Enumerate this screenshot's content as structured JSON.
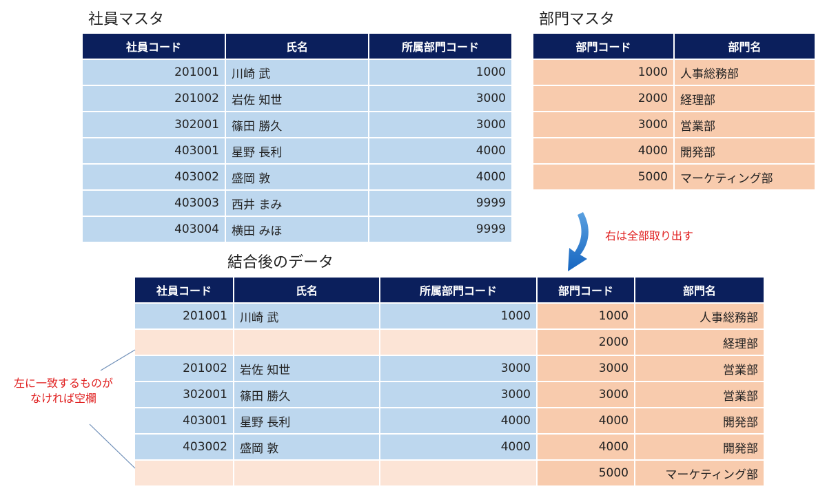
{
  "employee_master": {
    "title": "社員マスタ",
    "headers": [
      "社員コード",
      "氏名",
      "所属部門コード"
    ],
    "rows": [
      [
        "201001",
        "川崎 武",
        "1000"
      ],
      [
        "201002",
        "岩佐 知世",
        "3000"
      ],
      [
        "302001",
        "篠田 勝久",
        "3000"
      ],
      [
        "403001",
        "星野 長利",
        "4000"
      ],
      [
        "403002",
        "盛岡 敦",
        "4000"
      ],
      [
        "403003",
        "西井 まみ",
        "9999"
      ],
      [
        "403004",
        "横田 みほ",
        "9999"
      ]
    ]
  },
  "department_master": {
    "title": "部門マスタ",
    "headers": [
      "部門コード",
      "部門名"
    ],
    "rows": [
      [
        "1000",
        "人事総務部"
      ],
      [
        "2000",
        "経理部"
      ],
      [
        "3000",
        "営業部"
      ],
      [
        "4000",
        "開発部"
      ],
      [
        "5000",
        "マーケティング部"
      ]
    ]
  },
  "joined": {
    "title": "結合後のデータ",
    "headers": [
      "社員コード",
      "氏名",
      "所属部門コード",
      "部門コード",
      "部門名"
    ],
    "rows": [
      [
        "201001",
        "川崎 武",
        "1000",
        "1000",
        "人事総務部"
      ],
      [
        "",
        "",
        "",
        "2000",
        "経理部"
      ],
      [
        "201002",
        "岩佐 知世",
        "3000",
        "3000",
        "営業部"
      ],
      [
        "302001",
        "篠田 勝久",
        "3000",
        "3000",
        "営業部"
      ],
      [
        "403001",
        "星野 長利",
        "4000",
        "4000",
        "開発部"
      ],
      [
        "403002",
        "盛岡 敦",
        "4000",
        "4000",
        "開発部"
      ],
      [
        "",
        "",
        "",
        "5000",
        "マーケティング部"
      ]
    ]
  },
  "annotations": {
    "right_all": "右は全部取り出す",
    "left_blank_line1": "左に一致するものが",
    "left_blank_line2": "なければ空欄"
  },
  "colors": {
    "header": "#0b1f5c",
    "left_table": "#bdd7ee",
    "right_table": "#f8cbad",
    "blank_row": "#fce4d6",
    "arrow": "#1565c0",
    "note_text": "#e02020"
  }
}
